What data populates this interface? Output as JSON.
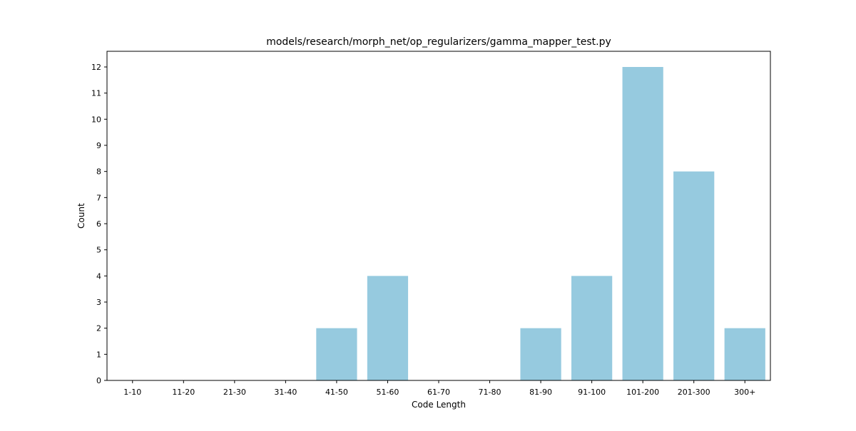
{
  "chart_data": {
    "type": "bar",
    "title": "models/research/morph_net/op_regularizers/gamma_mapper_test.py",
    "xlabel": "Code Length",
    "ylabel": "Count",
    "categories": [
      "1-10",
      "11-20",
      "21-30",
      "31-40",
      "41-50",
      "51-60",
      "61-70",
      "71-80",
      "81-90",
      "91-100",
      "101-200",
      "201-300",
      "300+"
    ],
    "values": [
      0,
      0,
      0,
      0,
      2,
      4,
      0,
      0,
      2,
      4,
      12,
      8,
      2
    ],
    "ylim": [
      0,
      12.6
    ],
    "yticks": [
      "0",
      "1",
      "2",
      "3",
      "4",
      "5",
      "6",
      "7",
      "8",
      "9",
      "10",
      "11",
      "12"
    ],
    "grid": false,
    "legend": "none",
    "bar_color": "#96cadf"
  }
}
